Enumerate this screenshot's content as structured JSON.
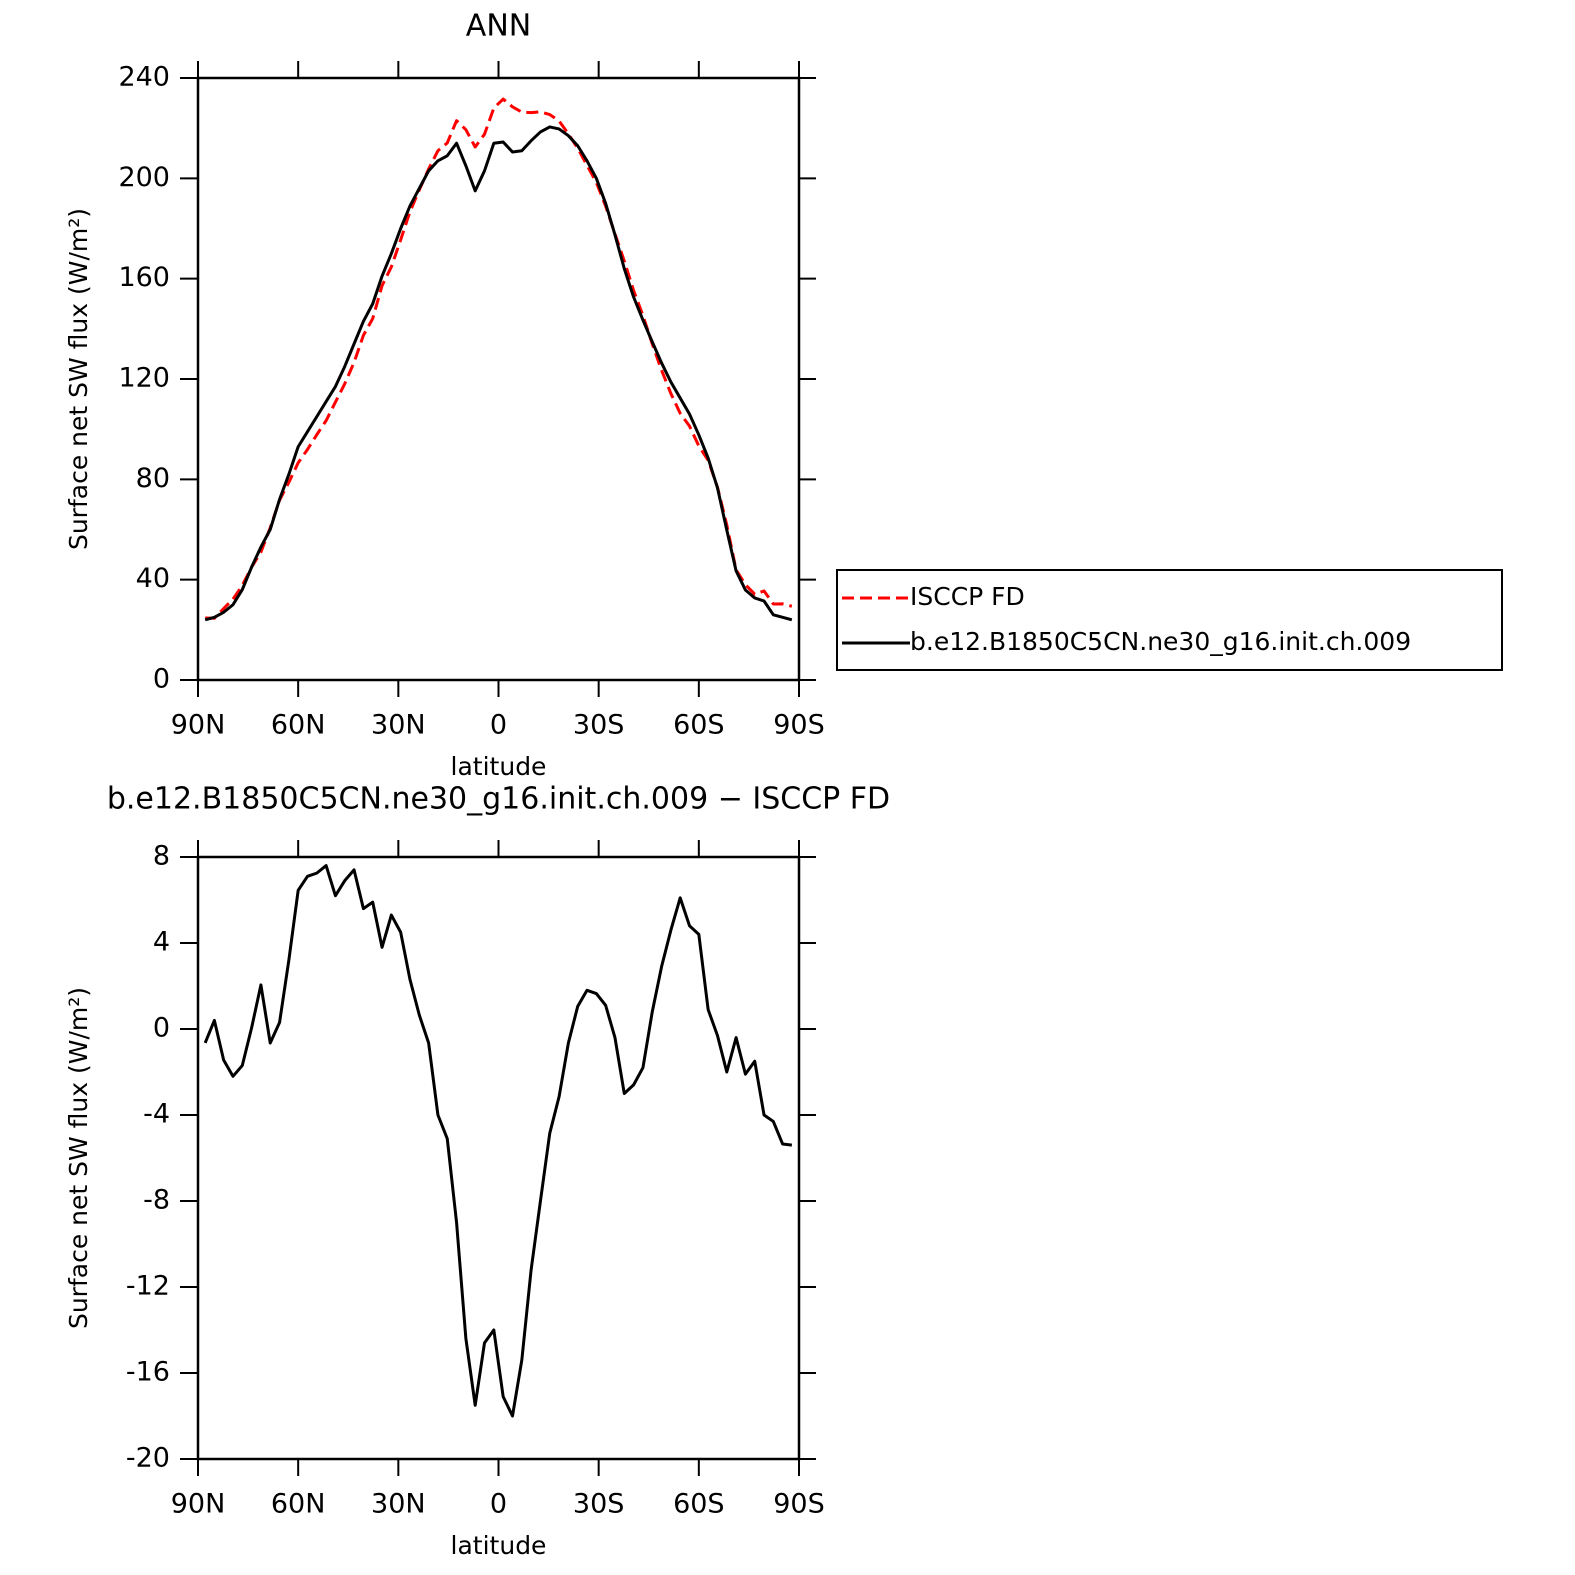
{
  "chart_data": [
    {
      "type": "line",
      "title": "ANN",
      "xlabel": "latitude",
      "ylabel": "Surface net SW flux (W/m²)",
      "x": [
        87.86,
        85.1,
        82.31,
        79.53,
        76.74,
        73.95,
        71.16,
        68.37,
        65.58,
        62.79,
        60.0,
        57.21,
        54.42,
        51.63,
        48.84,
        46.05,
        43.26,
        40.46,
        37.67,
        34.88,
        32.09,
        29.3,
        26.51,
        23.72,
        20.93,
        18.14,
        15.35,
        12.56,
        9.77,
        6.98,
        4.19,
        1.4,
        -1.4,
        -4.19,
        -6.98,
        -9.77,
        -12.56,
        -15.35,
        -18.14,
        -20.93,
        -23.72,
        -26.51,
        -29.3,
        -32.09,
        -34.88,
        -37.67,
        -40.46,
        -43.26,
        -46.05,
        -48.84,
        -51.63,
        -54.42,
        -57.21,
        -60.0,
        -62.79,
        -65.58,
        -68.37,
        -71.16,
        -73.95,
        -76.74,
        -79.53,
        -82.31,
        -85.1,
        -87.86
      ],
      "series": [
        {
          "name": "ISCCP FD",
          "color": "#ff0000",
          "line_style": "dashed",
          "values": [
            24.7,
            24.6,
            28.5,
            32.2,
            37.7,
            45,
            51,
            60.7,
            71.7,
            78.8,
            86.6,
            91.9,
            97.8,
            103.4,
            110.8,
            118.1,
            126.6,
            137.4,
            144.1,
            157.2,
            164.7,
            175.5,
            186.7,
            195.4,
            203.7,
            211,
            214.1,
            223,
            219.4,
            212.5,
            217.6,
            228,
            231.6,
            228.5,
            226.4,
            226.2,
            226.5,
            225.4,
            222.9,
            217.7,
            212,
            205.2,
            198.4,
            188.9,
            177.9,
            167,
            155.3,
            145.3,
            134,
            123.5,
            114.2,
            106.3,
            101.2,
            93.3,
            87.6,
            76.9,
            61.8,
            43.9,
            38,
            34.2,
            35.5,
            30.3,
            30.35,
            29.4
          ]
        },
        {
          "name": "b.e12.B1850C5CN.ne30_g16.init.ch.009",
          "color": "#000000",
          "line_style": "solid",
          "values": [
            24,
            25,
            27,
            30,
            36,
            45,
            53,
            60,
            72,
            82,
            93,
            99,
            105,
            111,
            117,
            125,
            134,
            143,
            150,
            161,
            170,
            180,
            189,
            196,
            203,
            207,
            209,
            214,
            205,
            195,
            203,
            214,
            214.5,
            210.5,
            211,
            215,
            218.5,
            220.5,
            219.7,
            217,
            213,
            207,
            200,
            190,
            177.5,
            164,
            152.7,
            143.5,
            134.8,
            126.4,
            118.8,
            112.4,
            106,
            97.7,
            88.5,
            76.6,
            59.8,
            43.5,
            35.9,
            32.7,
            31.5,
            26,
            25,
            24
          ]
        }
      ],
      "xlim": [
        90,
        -90
      ],
      "xticks": [
        {
          "value": 90,
          "label": "90N"
        },
        {
          "value": 60,
          "label": "60N"
        },
        {
          "value": 30,
          "label": "30N"
        },
        0,
        {
          "value": -30,
          "label": "30S"
        },
        {
          "value": -60,
          "label": "60S"
        },
        {
          "value": -90,
          "label": "90S"
        }
      ],
      "ylim": [
        0,
        240
      ],
      "yticks": [
        0,
        40,
        80,
        120,
        160,
        200,
        240
      ],
      "legend": "right"
    },
    {
      "type": "line",
      "title": "b.e12.B1850C5CN.ne30_g16.init.ch.009 − ISCCP FD",
      "xlabel": "latitude",
      "ylabel": "Surface net SW flux (W/m²)",
      "x": [
        87.86,
        85.1,
        82.31,
        79.53,
        76.74,
        73.95,
        71.16,
        68.37,
        65.58,
        62.79,
        60.0,
        57.21,
        54.42,
        51.63,
        48.84,
        46.05,
        43.26,
        40.46,
        37.67,
        34.88,
        32.09,
        29.3,
        26.51,
        23.72,
        20.93,
        18.14,
        15.35,
        12.56,
        9.77,
        6.98,
        4.19,
        1.4,
        -1.4,
        -4.19,
        -6.98,
        -9.77,
        -12.56,
        -15.35,
        -18.14,
        -20.93,
        -23.72,
        -26.51,
        -29.3,
        -32.09,
        -34.88,
        -37.67,
        -40.46,
        -43.26,
        -46.05,
        -48.84,
        -51.63,
        -54.42,
        -57.21,
        -60.0,
        -62.79,
        -65.58,
        -68.37,
        -71.16,
        -73.95,
        -76.74,
        -79.53,
        -82.31,
        -85.1,
        -87.86
      ],
      "series": [
        {
          "color": "#000000",
          "line_style": "solid",
          "values": [
            -0.65,
            0.4,
            -1.45,
            -2.2,
            -1.7,
            0.05,
            2.05,
            -0.65,
            0.3,
            3.2,
            6.45,
            7.1,
            7.25,
            7.6,
            6.2,
            6.9,
            7.4,
            5.6,
            5.9,
            3.8,
            5.3,
            4.5,
            2.3,
            0.65,
            -0.65,
            -4,
            -5.1,
            -9,
            -14.4,
            -17.5,
            -14.6,
            -14,
            -17.1,
            -18,
            -15.4,
            -11.2,
            -8,
            -4.85,
            -3.15,
            -0.65,
            1.05,
            1.8,
            1.65,
            1.1,
            -0.4,
            -3,
            -2.6,
            -1.8,
            0.8,
            2.9,
            4.6,
            6.1,
            4.8,
            4.4,
            0.9,
            -0.3,
            -2,
            -0.4,
            -2.1,
            -1.5,
            -4,
            -4.3,
            -5.35,
            -5.4
          ]
        }
      ],
      "xlim": [
        90,
        -90
      ],
      "xticks": [
        {
          "value": 90,
          "label": "90N"
        },
        {
          "value": 60,
          "label": "60N"
        },
        {
          "value": 30,
          "label": "30N"
        },
        0,
        {
          "value": -30,
          "label": "30S"
        },
        {
          "value": -60,
          "label": "60S"
        },
        {
          "value": -90,
          "label": "90S"
        }
      ],
      "ylim": [
        -20,
        8
      ],
      "yticks": [
        -20,
        -16,
        -12,
        -8,
        -4,
        0,
        4,
        8
      ]
    }
  ]
}
